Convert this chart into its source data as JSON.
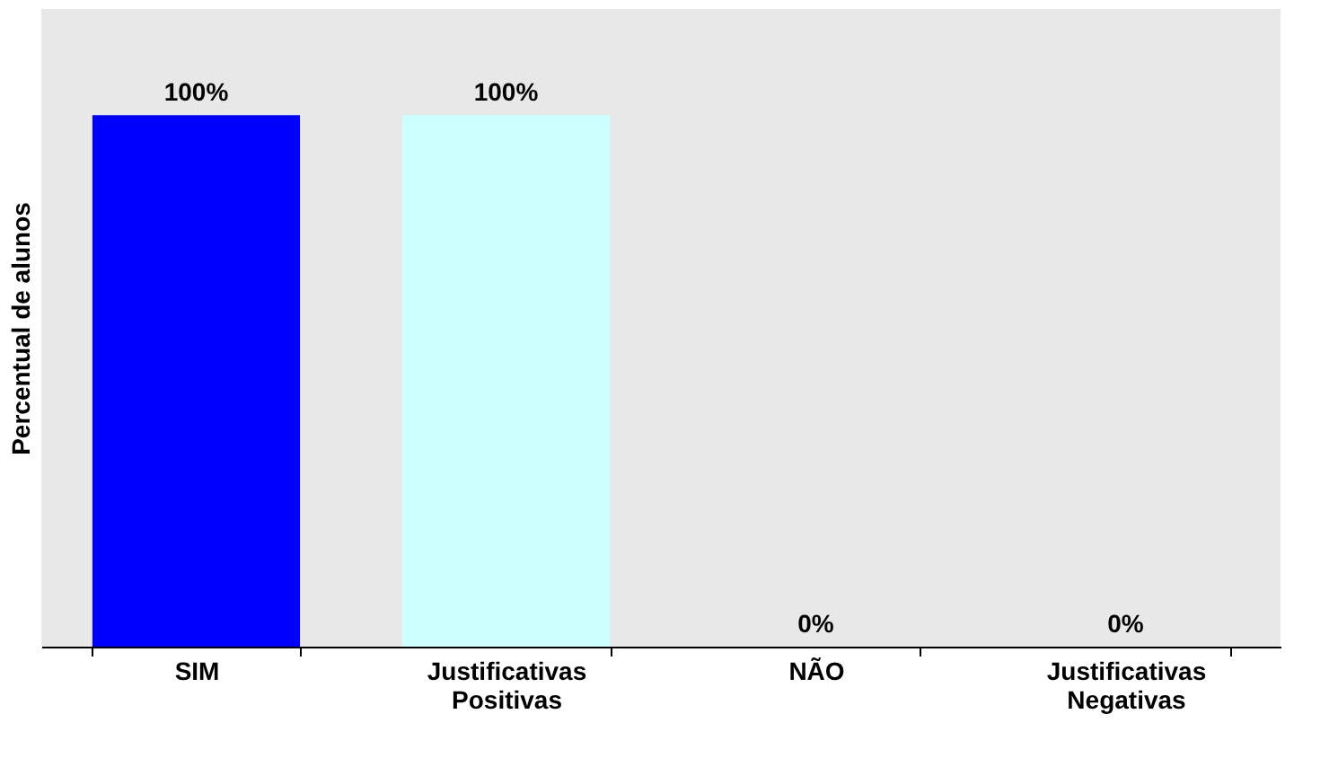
{
  "chart_data": {
    "type": "bar",
    "ylabel": "Percentual de alunos",
    "categories": [
      "SIM",
      "Justificativas Positivas",
      "NÃO",
      "Justificativas Negativas"
    ],
    "values": [
      100,
      100,
      0,
      0
    ],
    "colors": [
      "#0000ff",
      "#ccffff",
      "#0000ff",
      "#ccffff"
    ],
    "value_labels": [
      "100%",
      "100%",
      "0%",
      "0%"
    ],
    "ylim": [
      0,
      120
    ],
    "tick_labels": "x",
    "grid": false
  }
}
